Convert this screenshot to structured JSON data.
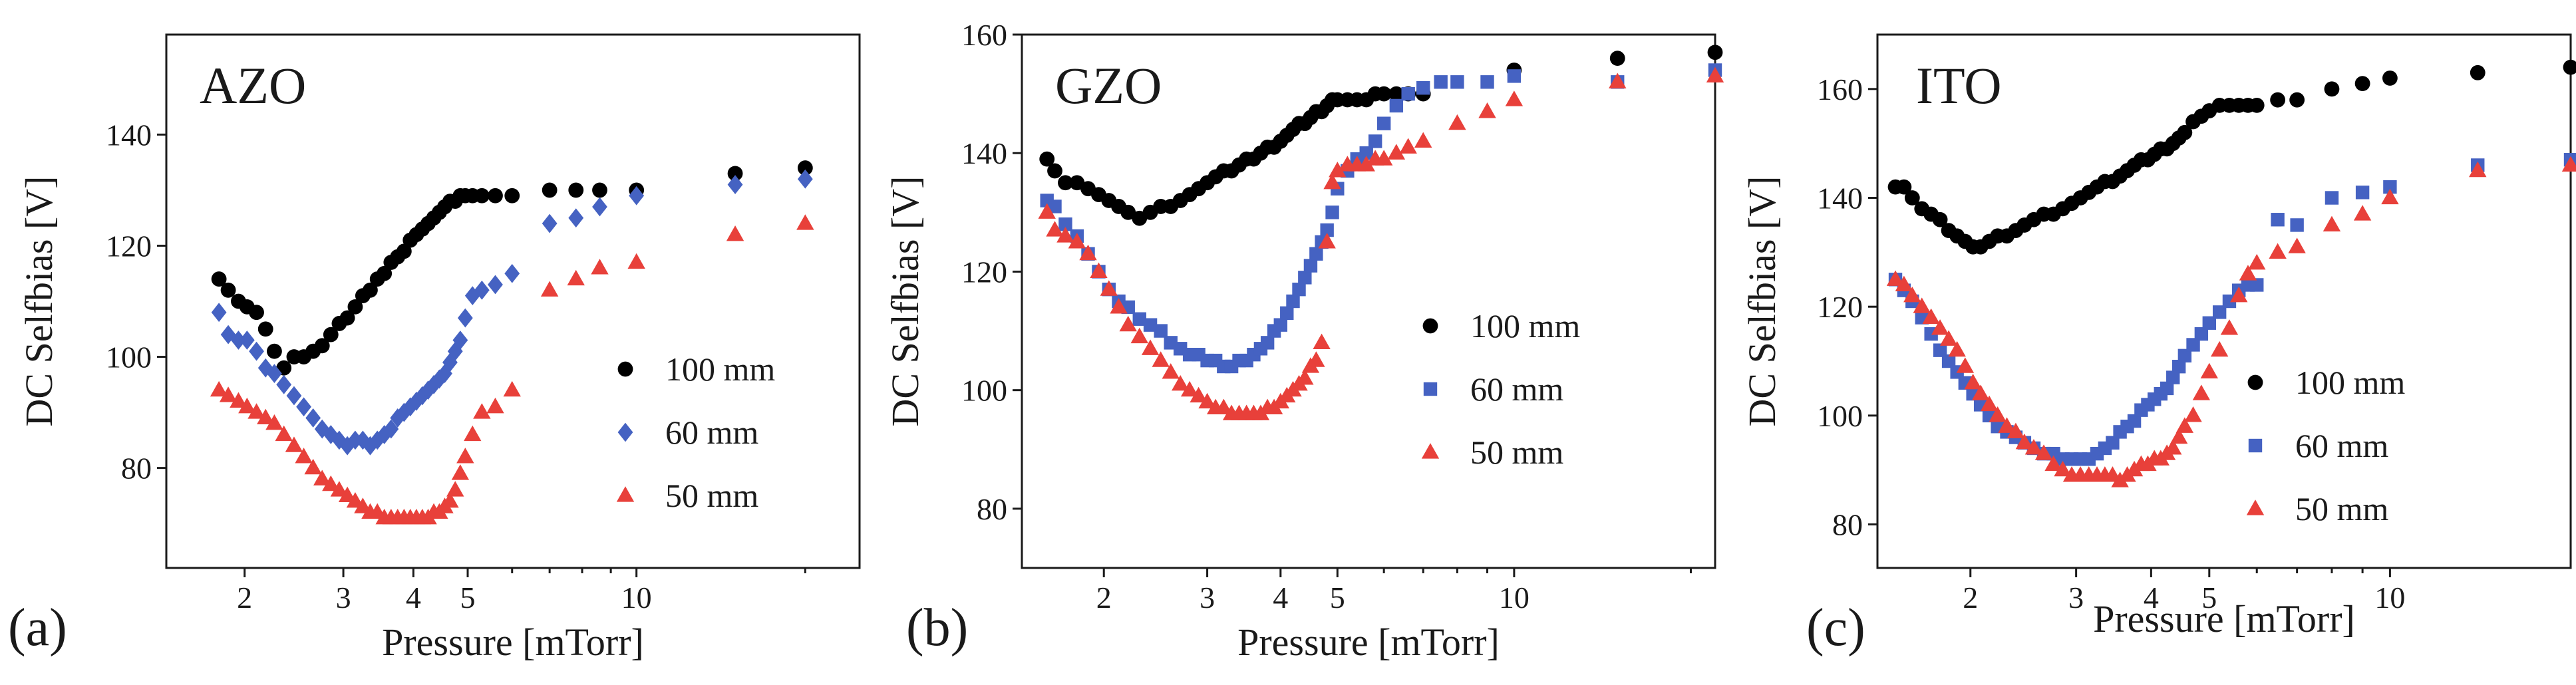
{
  "colors": {
    "s100": "#000000",
    "s60": "#4562c2",
    "s50": "#e8403a"
  },
  "chart_data": [
    {
      "type": "scatter",
      "panel_letter": "(a)",
      "title": "AZO",
      "xlabel": "Pressure [mTorr]",
      "ylabel": "DC Selfbias [V]",
      "xscale": "log",
      "xlim": [
        1.45,
        25
      ],
      "ylim": [
        62,
        158
      ],
      "xticks": [
        2,
        3,
        4,
        5,
        10
      ],
      "xtick_labels": [
        "2",
        "3",
        "4",
        "5",
        "10"
      ],
      "yticks": [
        80,
        100,
        120,
        140
      ],
      "ytick_labels": [
        "80",
        "100",
        "120",
        "140"
      ],
      "legend_position": "right",
      "series": [
        {
          "name": "100 mm",
          "marker": "circle",
          "color": "#000000",
          "x": [
            1.8,
            1.87,
            1.95,
            2.02,
            2.1,
            2.18,
            2.26,
            2.35,
            2.45,
            2.55,
            2.65,
            2.75,
            2.85,
            2.95,
            3.05,
            3.15,
            3.25,
            3.35,
            3.45,
            3.55,
            3.65,
            3.75,
            3.85,
            3.95,
            4.05,
            4.15,
            4.25,
            4.35,
            4.45,
            4.55,
            4.65,
            4.75,
            4.85,
            4.95,
            5.1,
            5.3,
            5.6,
            6.0,
            7.0,
            7.8,
            8.6,
            10,
            15,
            20
          ],
          "y": [
            114,
            112,
            110,
            109,
            108,
            105,
            101,
            98,
            100,
            100,
            101,
            102,
            104,
            106,
            107,
            109,
            111,
            112,
            114,
            115,
            117,
            118,
            119,
            121,
            122,
            123,
            124,
            125,
            126,
            127,
            128,
            128,
            129,
            129,
            129,
            129,
            129,
            129,
            130,
            130,
            130,
            130,
            133,
            134
          ]
        },
        {
          "name": "60 mm",
          "marker": "diamond",
          "color": "#4562c2",
          "x": [
            1.8,
            1.87,
            1.95,
            2.02,
            2.1,
            2.18,
            2.26,
            2.35,
            2.45,
            2.55,
            2.65,
            2.75,
            2.85,
            2.95,
            3.05,
            3.15,
            3.25,
            3.35,
            3.45,
            3.55,
            3.65,
            3.75,
            3.85,
            3.95,
            4.05,
            4.15,
            4.25,
            4.35,
            4.45,
            4.55,
            4.65,
            4.75,
            4.85,
            4.95,
            5.1,
            5.3,
            5.6,
            6.0,
            7.0,
            7.8,
            8.6,
            10,
            15,
            20
          ],
          "y": [
            108,
            104,
            103,
            103,
            101,
            98,
            97,
            95,
            93,
            91,
            89,
            87,
            86,
            85,
            84,
            85,
            85,
            84,
            85,
            86,
            87,
            89,
            90,
            91,
            92,
            93,
            94,
            95,
            96,
            97,
            99,
            101,
            103,
            107,
            111,
            112,
            113,
            115,
            124,
            125,
            127,
            129,
            131,
            132
          ]
        },
        {
          "name": "50 mm",
          "marker": "triangle",
          "color": "#e8403a",
          "x": [
            1.8,
            1.87,
            1.95,
            2.02,
            2.1,
            2.18,
            2.26,
            2.35,
            2.45,
            2.55,
            2.65,
            2.75,
            2.85,
            2.95,
            3.05,
            3.15,
            3.25,
            3.35,
            3.45,
            3.55,
            3.65,
            3.75,
            3.85,
            3.95,
            4.05,
            4.15,
            4.25,
            4.35,
            4.45,
            4.55,
            4.65,
            4.75,
            4.85,
            4.95,
            5.1,
            5.3,
            5.6,
            6.0,
            7.0,
            7.8,
            8.6,
            10,
            15,
            20
          ],
          "y": [
            94,
            93,
            92,
            91,
            90,
            89,
            88,
            86,
            84,
            82,
            80,
            78,
            77,
            76,
            75,
            74,
            73,
            72,
            72,
            71,
            71,
            71,
            71,
            71,
            71,
            71,
            71,
            72,
            72,
            73,
            74,
            76,
            79,
            82,
            86,
            90,
            91,
            94,
            112,
            114,
            116,
            117,
            122,
            124
          ]
        }
      ]
    },
    {
      "type": "scatter",
      "panel_letter": "(b)",
      "title": "GZO",
      "xlabel": "Pressure [mTorr]",
      "ylabel": "DC Selfbias [V]",
      "xscale": "log",
      "xlim": [
        1.45,
        22
      ],
      "ylim": [
        70,
        160
      ],
      "xticks": [
        2,
        3,
        4,
        5,
        10
      ],
      "xtick_labels": [
        "2",
        "3",
        "4",
        "5",
        "10"
      ],
      "yticks": [
        80,
        100,
        120,
        140,
        160
      ],
      "ytick_labels": [
        "80",
        "100",
        "120",
        "140",
        "160"
      ],
      "legend_position": "right",
      "series": [
        {
          "name": "100 mm",
          "marker": "circle",
          "color": "#000000",
          "x": [
            1.6,
            1.65,
            1.72,
            1.8,
            1.88,
            1.96,
            2.04,
            2.12,
            2.2,
            2.3,
            2.4,
            2.5,
            2.6,
            2.7,
            2.8,
            2.9,
            3.0,
            3.1,
            3.2,
            3.3,
            3.4,
            3.5,
            3.6,
            3.7,
            3.8,
            3.9,
            4.0,
            4.1,
            4.2,
            4.3,
            4.4,
            4.5,
            4.6,
            4.7,
            4.8,
            4.9,
            5.0,
            5.2,
            5.4,
            5.6,
            5.8,
            6.0,
            6.3,
            6.6,
            7.0,
            10,
            15,
            22
          ],
          "y": [
            139,
            137,
            135,
            135,
            134,
            133,
            132,
            131,
            130,
            129,
            130,
            131,
            131,
            132,
            133,
            134,
            135,
            136,
            137,
            137,
            138,
            139,
            139,
            140,
            141,
            141,
            142,
            143,
            144,
            145,
            145,
            146,
            147,
            147,
            148,
            149,
            149,
            149,
            149,
            149,
            150,
            150,
            150,
            150,
            150,
            154,
            156,
            157
          ]
        },
        {
          "name": "60 mm",
          "marker": "square",
          "color": "#4562c2",
          "x": [
            1.6,
            1.65,
            1.72,
            1.8,
            1.88,
            1.96,
            2.04,
            2.12,
            2.2,
            2.3,
            2.4,
            2.5,
            2.6,
            2.7,
            2.8,
            2.9,
            3.0,
            3.1,
            3.2,
            3.3,
            3.4,
            3.5,
            3.6,
            3.7,
            3.8,
            3.9,
            4.0,
            4.1,
            4.2,
            4.3,
            4.4,
            4.5,
            4.6,
            4.7,
            4.8,
            4.9,
            5.0,
            5.2,
            5.4,
            5.6,
            5.8,
            6.0,
            6.3,
            6.6,
            7.0,
            7.5,
            8.0,
            9.0,
            10,
            15,
            22
          ],
          "y": [
            132,
            131,
            128,
            126,
            123,
            120,
            117,
            115,
            114,
            112,
            111,
            110,
            108,
            107,
            106,
            106,
            105,
            105,
            104,
            104,
            105,
            105,
            106,
            107,
            108,
            110,
            111,
            113,
            115,
            117,
            119,
            121,
            123,
            125,
            127,
            130,
            134,
            137,
            139,
            140,
            142,
            145,
            148,
            150,
            151,
            152,
            152,
            152,
            153,
            152,
            154
          ]
        },
        {
          "name": "50 mm",
          "marker": "triangle",
          "color": "#e8403a",
          "x": [
            1.6,
            1.65,
            1.72,
            1.8,
            1.88,
            1.96,
            2.04,
            2.12,
            2.2,
            2.3,
            2.4,
            2.5,
            2.6,
            2.7,
            2.8,
            2.9,
            3.0,
            3.1,
            3.2,
            3.3,
            3.4,
            3.5,
            3.6,
            3.7,
            3.8,
            3.9,
            4.0,
            4.1,
            4.2,
            4.3,
            4.4,
            4.5,
            4.6,
            4.7,
            4.8,
            4.9,
            5.0,
            5.2,
            5.4,
            5.6,
            5.8,
            6.0,
            6.3,
            6.6,
            7.0,
            8.0,
            9.0,
            10,
            15,
            22
          ],
          "y": [
            130,
            127,
            126,
            125,
            123,
            120,
            117,
            114,
            111,
            109,
            107,
            105,
            103,
            101,
            100,
            99,
            98,
            97,
            97,
            96,
            96,
            96,
            96,
            96,
            97,
            97,
            98,
            99,
            100,
            101,
            102,
            104,
            105,
            108,
            125,
            135,
            137,
            138,
            138,
            138,
            139,
            139,
            140,
            141,
            142,
            145,
            147,
            149,
            152,
            153
          ]
        }
      ]
    },
    {
      "type": "scatter",
      "panel_letter": "(c)",
      "title": "ITO",
      "xlabel": "Pressure [mTorr]",
      "ylabel": "DC Selfbias [V]",
      "xscale": "log",
      "xlim": [
        1.4,
        20
      ],
      "ylim": [
        72,
        170
      ],
      "xticks": [
        2,
        3,
        4,
        5,
        10
      ],
      "xtick_labels": [
        "2",
        "3",
        "4",
        "5",
        "10"
      ],
      "yticks": [
        80,
        100,
        120,
        140,
        160
      ],
      "ytick_labels": [
        "80",
        "100",
        "120",
        "140",
        "160"
      ],
      "legend_position": "right",
      "series": [
        {
          "name": "100 mm",
          "marker": "circle",
          "color": "#000000",
          "x": [
            1.5,
            1.55,
            1.6,
            1.66,
            1.72,
            1.78,
            1.84,
            1.9,
            1.96,
            2.02,
            2.08,
            2.15,
            2.22,
            2.3,
            2.38,
            2.46,
            2.55,
            2.65,
            2.75,
            2.85,
            2.95,
            3.05,
            3.15,
            3.25,
            3.35,
            3.45,
            3.55,
            3.65,
            3.75,
            3.85,
            3.95,
            4.05,
            4.15,
            4.25,
            4.35,
            4.45,
            4.55,
            4.7,
            4.85,
            5.0,
            5.2,
            5.4,
            5.6,
            5.8,
            6.0,
            6.5,
            7.0,
            8.0,
            9.0,
            10,
            14,
            20
          ],
          "y": [
            142,
            142,
            140,
            138,
            137,
            136,
            134,
            133,
            132,
            131,
            131,
            132,
            133,
            133,
            134,
            135,
            136,
            137,
            137,
            138,
            139,
            140,
            141,
            142,
            143,
            143,
            144,
            145,
            146,
            147,
            147,
            148,
            149,
            149,
            150,
            151,
            152,
            154,
            155,
            156,
            157,
            157,
            157,
            157,
            157,
            158,
            158,
            160,
            161,
            162,
            163,
            164
          ]
        },
        {
          "name": "60 mm",
          "marker": "square",
          "color": "#4562c2",
          "x": [
            1.5,
            1.55,
            1.6,
            1.66,
            1.72,
            1.78,
            1.84,
            1.9,
            1.96,
            2.02,
            2.08,
            2.15,
            2.22,
            2.3,
            2.38,
            2.46,
            2.55,
            2.65,
            2.75,
            2.85,
            2.95,
            3.05,
            3.15,
            3.25,
            3.35,
            3.45,
            3.55,
            3.65,
            3.75,
            3.85,
            3.95,
            4.05,
            4.15,
            4.25,
            4.35,
            4.45,
            4.55,
            4.7,
            4.85,
            5.0,
            5.2,
            5.4,
            5.6,
            5.8,
            6.0,
            6.5,
            7.0,
            8.0,
            9.0,
            10,
            14,
            20
          ],
          "y": [
            125,
            123,
            121,
            118,
            115,
            112,
            110,
            108,
            106,
            104,
            102,
            100,
            98,
            97,
            96,
            95,
            94,
            93,
            93,
            92,
            92,
            92,
            92,
            93,
            94,
            95,
            97,
            98,
            99,
            101,
            102,
            103,
            104,
            105,
            107,
            109,
            111,
            113,
            115,
            117,
            119,
            121,
            123,
            124,
            124,
            136,
            135,
            140,
            141,
            142,
            146,
            147
          ]
        },
        {
          "name": "50 mm",
          "marker": "triangle",
          "color": "#e8403a",
          "x": [
            1.5,
            1.55,
            1.6,
            1.66,
            1.72,
            1.78,
            1.84,
            1.9,
            1.96,
            2.02,
            2.08,
            2.15,
            2.22,
            2.3,
            2.38,
            2.46,
            2.55,
            2.65,
            2.75,
            2.85,
            2.95,
            3.05,
            3.15,
            3.25,
            3.35,
            3.45,
            3.55,
            3.65,
            3.75,
            3.85,
            3.95,
            4.05,
            4.15,
            4.25,
            4.35,
            4.45,
            4.55,
            4.7,
            4.85,
            5.0,
            5.2,
            5.4,
            5.6,
            5.8,
            6.0,
            6.5,
            7.0,
            8.0,
            9.0,
            10,
            14,
            20
          ],
          "y": [
            125,
            124,
            122,
            120,
            118,
            116,
            114,
            112,
            109,
            106,
            104,
            102,
            100,
            98,
            97,
            95,
            94,
            93,
            91,
            90,
            89,
            89,
            89,
            89,
            89,
            89,
            88,
            89,
            90,
            91,
            91,
            92,
            92,
            93,
            94,
            96,
            98,
            100,
            104,
            108,
            112,
            116,
            122,
            126,
            128,
            130,
            131,
            135,
            137,
            140,
            145,
            146
          ]
        }
      ]
    }
  ]
}
